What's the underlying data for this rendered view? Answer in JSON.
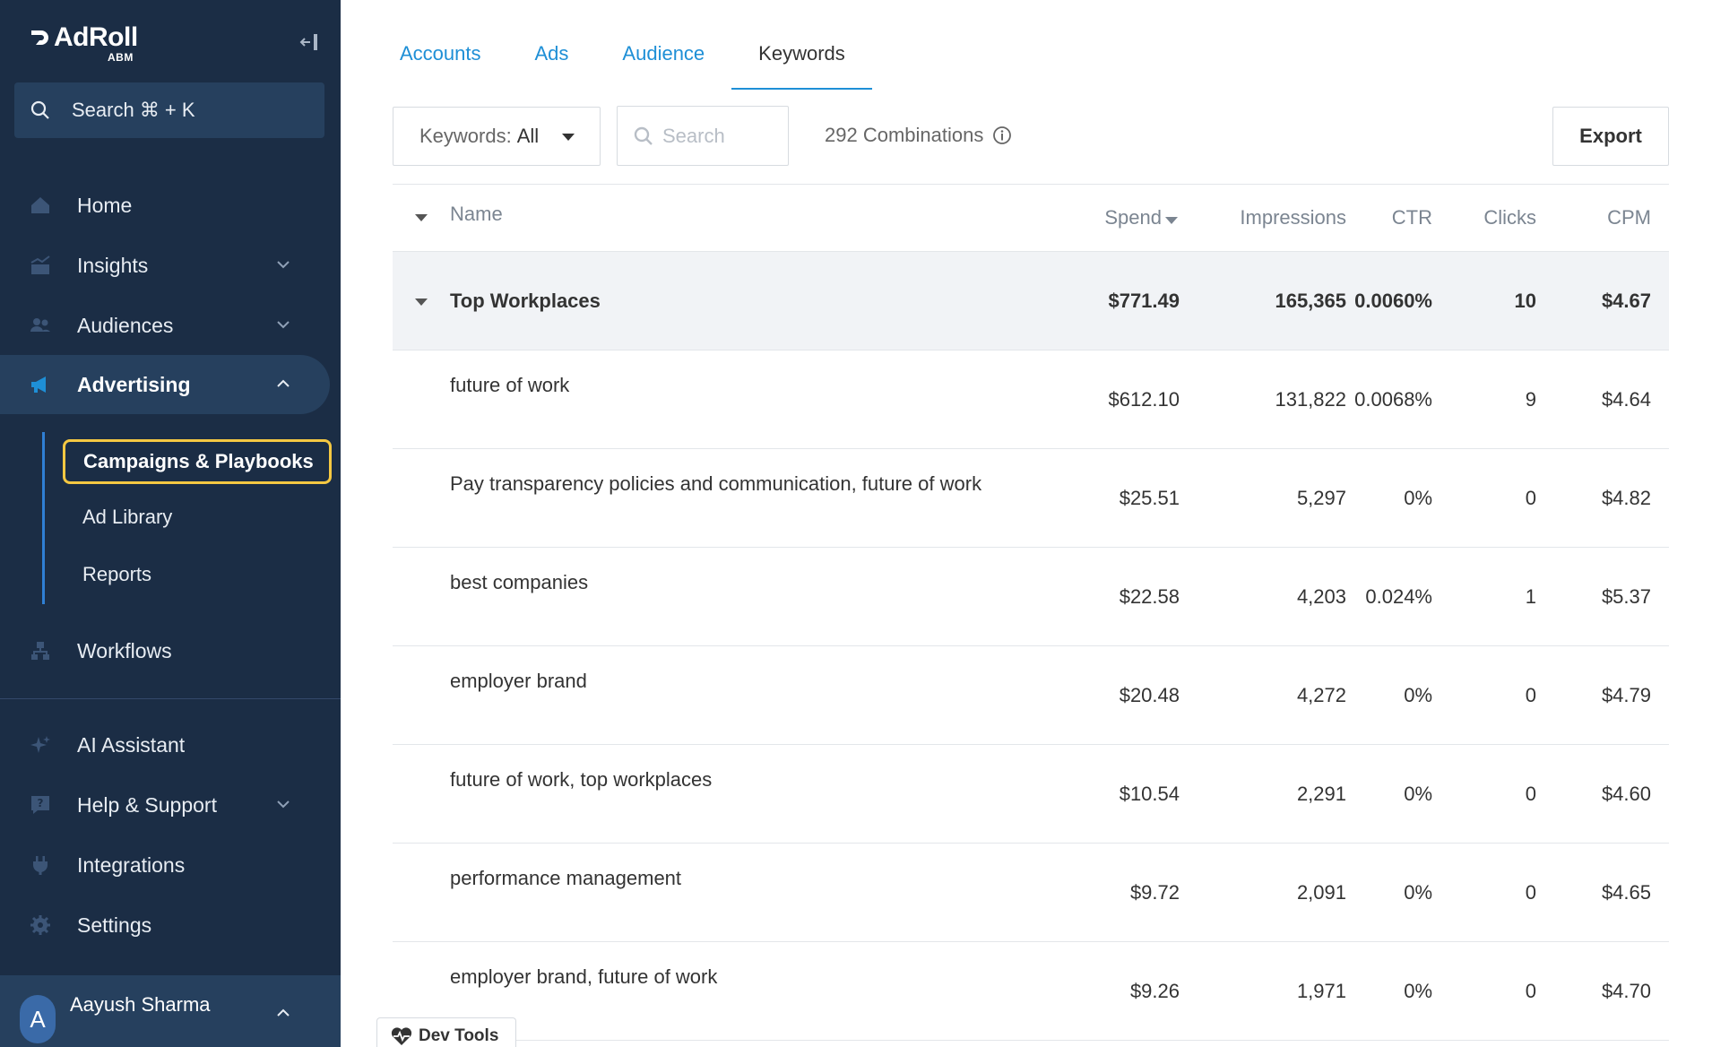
{
  "brand": {
    "name": "AdRoll",
    "sub": "ABM"
  },
  "sidebar": {
    "search_label": "Search ⌘ + K",
    "items": [
      {
        "label": "Home",
        "icon": "home-icon"
      },
      {
        "label": "Insights",
        "icon": "chart-icon"
      },
      {
        "label": "Audiences",
        "icon": "people-icon"
      },
      {
        "label": "Advertising",
        "icon": "megaphone-icon"
      },
      {
        "label": "Workflows",
        "icon": "workflow-icon"
      },
      {
        "label": "AI Assistant",
        "icon": "sparkle-icon"
      },
      {
        "label": "Help & Support",
        "icon": "help-icon"
      },
      {
        "label": "Integrations",
        "icon": "plug-icon"
      },
      {
        "label": "Settings",
        "icon": "gear-icon"
      }
    ],
    "advertising_sub": [
      "Campaigns & Playbooks",
      "Ad Library",
      "Reports"
    ],
    "user": {
      "initial": "A",
      "name": "Aayush Sharma"
    }
  },
  "tabs": [
    "Accounts",
    "Ads",
    "Audience",
    "Keywords"
  ],
  "active_tab": "Keywords",
  "toolbar": {
    "filter_label": "Keywords:",
    "filter_value": "All",
    "search_placeholder": "Search",
    "combinations": "292 Combinations",
    "export_label": "Export"
  },
  "table": {
    "headers": {
      "name": "Name",
      "spend": "Spend",
      "impressions": "Impressions",
      "ctr": "CTR",
      "clicks": "Clicks",
      "cpm": "CPM"
    },
    "group": {
      "name": "Top Workplaces",
      "spend": "$771.49",
      "impressions": "165,365",
      "ctr": "0.0060%",
      "clicks": "10",
      "cpm": "$4.67"
    },
    "rows": [
      {
        "name": "future of work",
        "spend": "$612.10",
        "impressions": "131,822",
        "ctr": "0.0068%",
        "clicks": "9",
        "cpm": "$4.64"
      },
      {
        "name": "Pay transparency policies and communication, future of work",
        "spend": "$25.51",
        "impressions": "5,297",
        "ctr": "0%",
        "clicks": "0",
        "cpm": "$4.82"
      },
      {
        "name": "best companies",
        "spend": "$22.58",
        "impressions": "4,203",
        "ctr": "0.024%",
        "clicks": "1",
        "cpm": "$5.37"
      },
      {
        "name": "employer brand",
        "spend": "$20.48",
        "impressions": "4,272",
        "ctr": "0%",
        "clicks": "0",
        "cpm": "$4.79"
      },
      {
        "name": "future of work, top workplaces",
        "spend": "$10.54",
        "impressions": "2,291",
        "ctr": "0%",
        "clicks": "0",
        "cpm": "$4.60"
      },
      {
        "name": "performance management",
        "spend": "$9.72",
        "impressions": "2,091",
        "ctr": "0%",
        "clicks": "0",
        "cpm": "$4.65"
      },
      {
        "name": "employer brand, future of work",
        "spend": "$9.26",
        "impressions": "1,971",
        "ctr": "0%",
        "clicks": "0",
        "cpm": "$4.70"
      }
    ]
  },
  "devtools_label": "Dev Tools",
  "colors": {
    "sidebar_bg": "#1b2d45",
    "sidebar_active": "#26405e",
    "accent": "#1e8fd6",
    "highlight": "#f5c842"
  }
}
